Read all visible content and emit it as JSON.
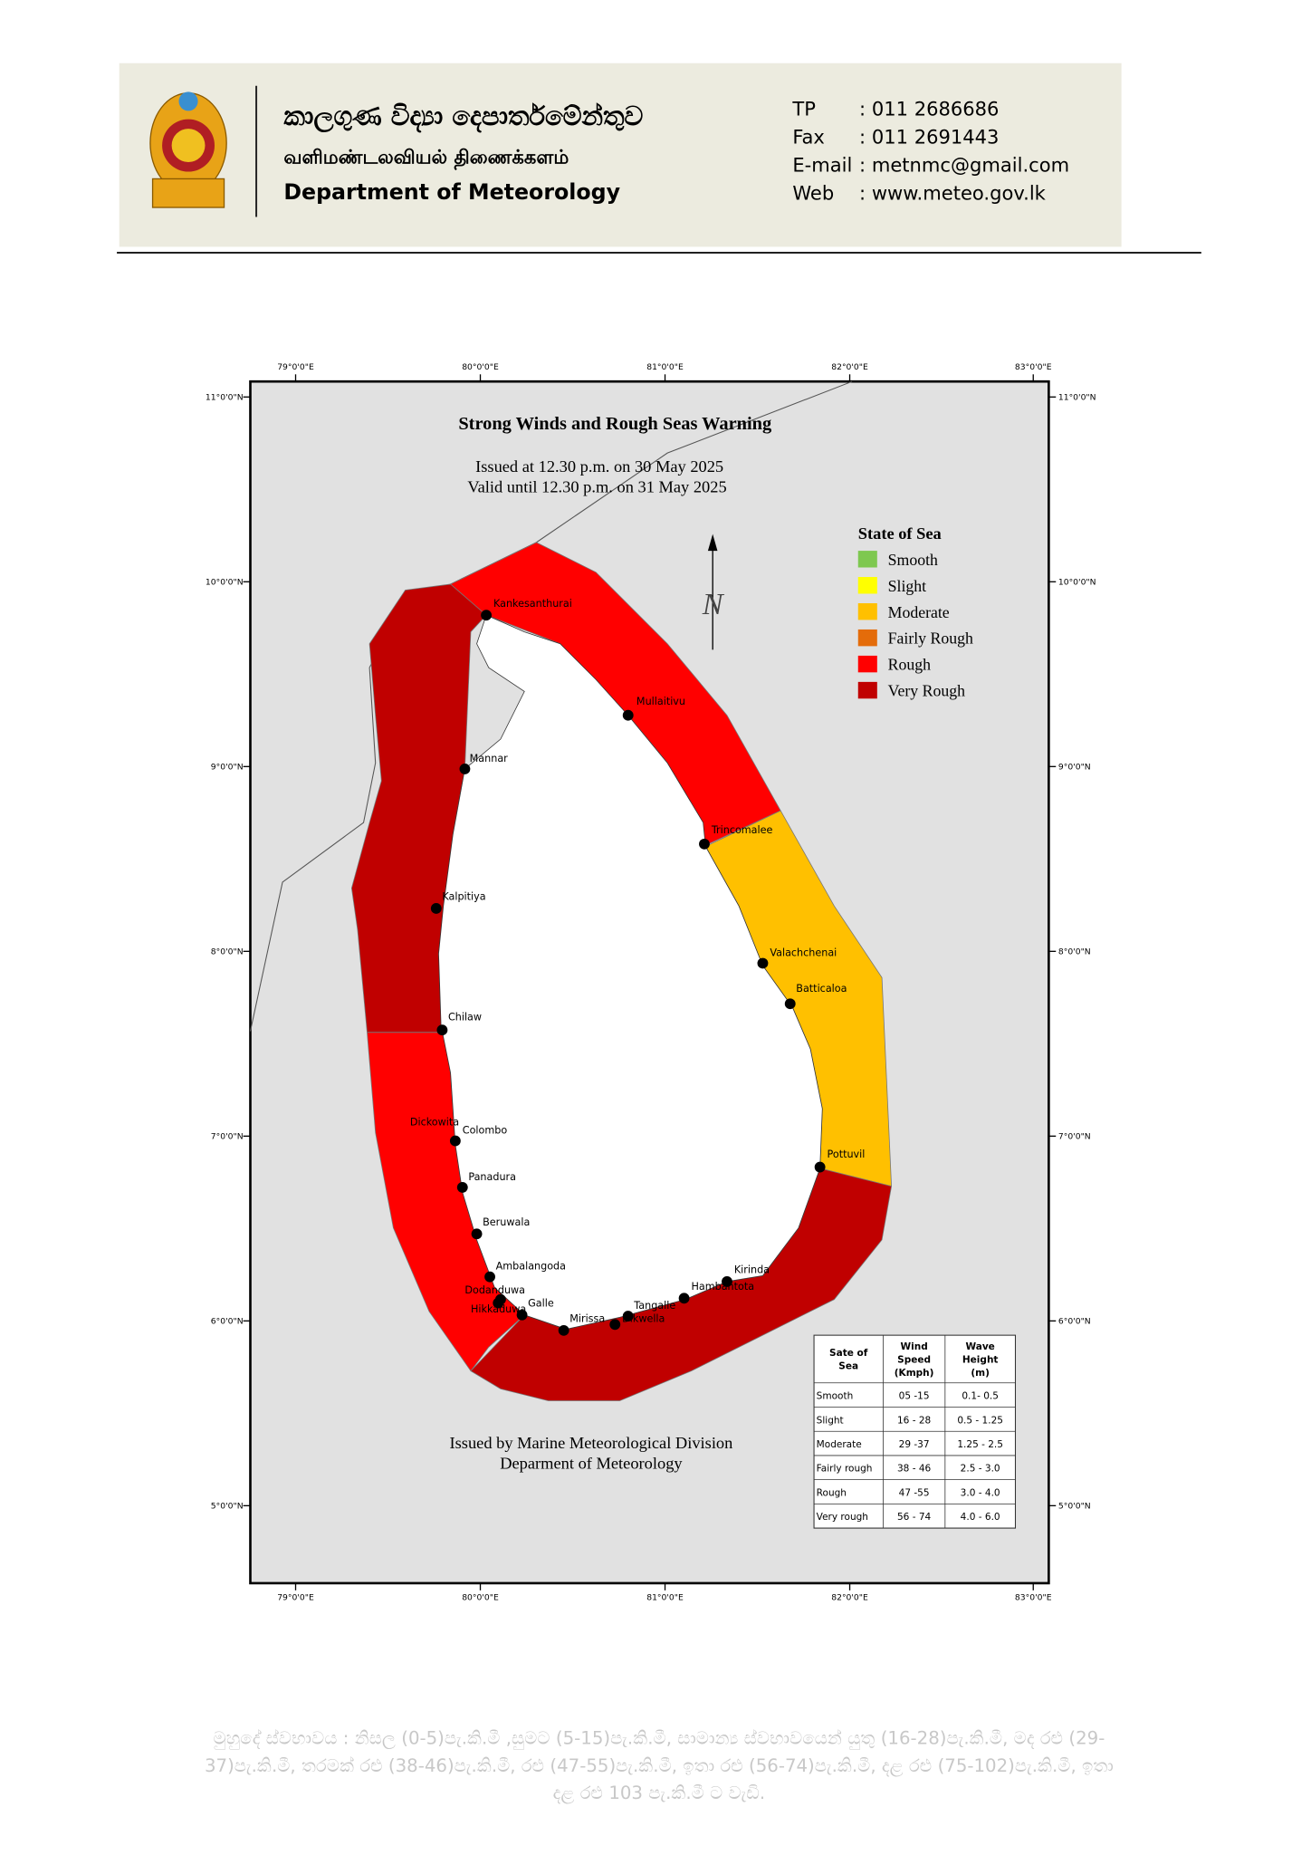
{
  "header": {
    "sinhala_name": "කාලගුණ විද්‍යා දෙපාර්තමේන්තුව",
    "tamil_name": "வளிமண்டலவியல் திணைக்களம்",
    "english_name": "Department of Meteorology",
    "contacts": [
      {
        "label": "TP",
        "value": ": 011 2686686"
      },
      {
        "label": "Fax",
        "value": ": 011 2691443"
      },
      {
        "label": "E-mail",
        "value": ": metnmc@gmail.com"
      },
      {
        "label": "Web",
        "value": ": www.meteo.gov.lk"
      }
    ]
  },
  "map": {
    "title": "Strong Winds and Rough Seas Warning",
    "issued": "Issued at 12.30 p.m. on 30 May 2025",
    "valid": "Valid until 12.30 p.m. on 31 May 2025",
    "north": "N",
    "legend_title": "State of Sea",
    "legend": [
      {
        "name": "Smooth",
        "color": "#7ec850"
      },
      {
        "name": "Slight",
        "color": "#ffff00"
      },
      {
        "name": "Moderate",
        "color": "#ffc000"
      },
      {
        "name": "Fairly Rough",
        "color": "#e46c0a"
      },
      {
        "name": "Rough",
        "color": "#ff0000"
      },
      {
        "name": "Very Rough",
        "color": "#c00000"
      }
    ],
    "lon_labels": [
      "79°0'0\"E",
      "80°0'0\"E",
      "81°0'0\"E",
      "82°0'0\"E",
      "83°0'0\"E"
    ],
    "lat_labels": [
      "11°0'0\"N",
      "10°0'0\"N",
      "9°0'0\"N",
      "8°0'0\"N",
      "7°0'0\"N",
      "6°0'0\"N",
      "5°0'0\"N"
    ],
    "places": [
      "Kankesanthurai",
      "Mullaitivu",
      "Mannar",
      "Trincomalee",
      "Kalpitiya",
      "Valachchenai",
      "Batticaloa",
      "Chilaw",
      "Colombo",
      "Dickowita",
      "Pottuvil",
      "Panadura",
      "Beruwala",
      "Ambalangoda",
      "Kirinda",
      "Hambantota",
      "Dodanduwa",
      "Galle",
      "Tangalle",
      "Hikkaduwa",
      "Mirissa",
      "Dikwella"
    ],
    "footer": [
      "Issued by Marine Meteorological Division",
      "Deparment of Meteorology"
    ]
  },
  "table": {
    "header": [
      [
        "Sate of",
        "Sea"
      ],
      [
        "Wind",
        "Speed",
        "(Kmph)"
      ],
      [
        "Wave",
        "Height",
        "(m)"
      ]
    ],
    "rows": [
      [
        "Smooth",
        "05 -15",
        "0.1- 0.5"
      ],
      [
        "Slight",
        "16 - 28",
        "0.5 - 1.25"
      ],
      [
        "Moderate",
        "29 -37",
        "1.25 - 2.5"
      ],
      [
        "Fairly rough",
        "38 - 46",
        "2.5 - 3.0"
      ],
      [
        "Rough",
        "47 -55",
        "3.0 - 4.0"
      ],
      [
        "Very rough",
        "56 - 74",
        "4.0 - 6.0"
      ]
    ]
  },
  "note": [
    "මුහුදේ ස්වභාවය : නිසල (0-5)පැ.කි.මී ,සුමට (5-15)පැ.කි.මී, සාමාන්‍ය ස්වභාවයෙන් යුතු (16-28)පැ.කි.මී, මද රළු (29-",
    "37)පැ.කි.මී, තරමක් රළු (38-46)පැ.කි.මී, රළු (47-55)පැ.කි.මී, ඉතා රළු (56-74)පැ.කි.මී, දළ රළු (75-102)පැ.කි.මී, ඉතා",
    "දළ රළු 103 පැ.කි.මී ට වැඩි."
  ]
}
